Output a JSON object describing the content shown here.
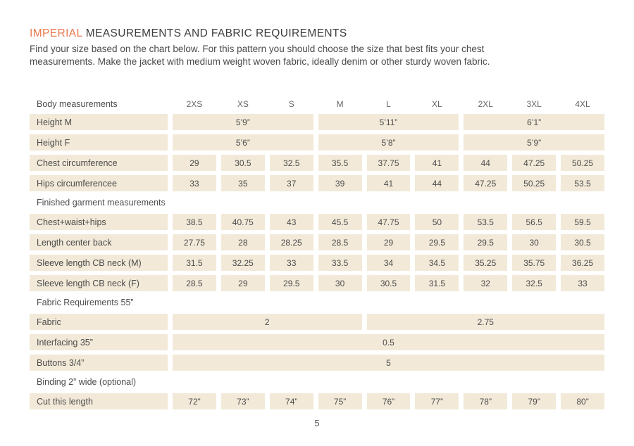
{
  "page": {
    "title_highlight": "IMPERIAL",
    "title_rest": " MEASUREMENTS AND FABRIC REQUIREMENTS",
    "intro_lines": [
      "Find your size based on the chart below. For this pattern you should choose the size that best fits your chest",
      "measurements. Make the jacket with medium weight woven fabric, ideally denim or other sturdy woven fabric."
    ],
    "page_number": "5"
  },
  "colors": {
    "accent": "#E8794D",
    "cell_background": "#F2E9D8",
    "text": "#4C4C4C",
    "muted": "#666666"
  },
  "table": {
    "corner_label": "Body measurements",
    "size_columns": [
      "2XS",
      "XS",
      "S",
      "M",
      "L",
      "XL",
      "2XL",
      "3XL",
      "4XL"
    ],
    "rows": [
      {
        "kind": "data",
        "label": "Height M",
        "cells": [
          {
            "text": "5’9”",
            "span": 3
          },
          {
            "text": "5’11”",
            "span": 3
          },
          {
            "text": "6’1”",
            "span": 3
          }
        ]
      },
      {
        "kind": "data",
        "label": "Height F",
        "cells": [
          {
            "text": "5’6”",
            "span": 3
          },
          {
            "text": "5’8”",
            "span": 3
          },
          {
            "text": "5’9”",
            "span": 3
          }
        ]
      },
      {
        "kind": "data",
        "label": "Chest circumference",
        "cells": [
          {
            "text": "29"
          },
          {
            "text": "30.5"
          },
          {
            "text": "32.5"
          },
          {
            "text": "35.5"
          },
          {
            "text": "37.75"
          },
          {
            "text": "41"
          },
          {
            "text": "44"
          },
          {
            "text": "47.25"
          },
          {
            "text": "50.25"
          }
        ]
      },
      {
        "kind": "data",
        "label": "Hips circumferencee",
        "cells": [
          {
            "text": "33"
          },
          {
            "text": "35"
          },
          {
            "text": "37"
          },
          {
            "text": "39"
          },
          {
            "text": "41"
          },
          {
            "text": "44"
          },
          {
            "text": "47.25"
          },
          {
            "text": "50.25"
          },
          {
            "text": "53.5"
          }
        ]
      },
      {
        "kind": "section",
        "label": "Finished garment measurements"
      },
      {
        "kind": "data",
        "label": "Chest+waist+hips",
        "cells": [
          {
            "text": "38.5"
          },
          {
            "text": "40.75"
          },
          {
            "text": "43"
          },
          {
            "text": "45.5"
          },
          {
            "text": "47.75"
          },
          {
            "text": "50"
          },
          {
            "text": "53.5"
          },
          {
            "text": "56.5"
          },
          {
            "text": "59.5"
          }
        ]
      },
      {
        "kind": "data",
        "label": "Length center back",
        "cells": [
          {
            "text": "27.75"
          },
          {
            "text": "28"
          },
          {
            "text": "28.25"
          },
          {
            "text": "28.5"
          },
          {
            "text": "29"
          },
          {
            "text": "29.5"
          },
          {
            "text": "29.5"
          },
          {
            "text": "30"
          },
          {
            "text": "30.5"
          }
        ]
      },
      {
        "kind": "data",
        "label": "Sleeve length CB neck (M)",
        "cells": [
          {
            "text": "31.5"
          },
          {
            "text": "32.25"
          },
          {
            "text": "33"
          },
          {
            "text": "33.5"
          },
          {
            "text": "34"
          },
          {
            "text": "34.5"
          },
          {
            "text": "35.25"
          },
          {
            "text": "35.75"
          },
          {
            "text": "36.25"
          }
        ]
      },
      {
        "kind": "data",
        "label": "Sleeve length CB neck (F)",
        "cells": [
          {
            "text": "28.5"
          },
          {
            "text": "29"
          },
          {
            "text": "29.5"
          },
          {
            "text": "30"
          },
          {
            "text": "30.5"
          },
          {
            "text": "31.5"
          },
          {
            "text": "32"
          },
          {
            "text": "32.5"
          },
          {
            "text": "33"
          }
        ]
      },
      {
        "kind": "section",
        "label": "Fabric Requirements 55”"
      },
      {
        "kind": "data",
        "label": "Fabric",
        "cells": [
          {
            "text": "2",
            "span": 4
          },
          {
            "text": "2.75",
            "span": 5
          }
        ]
      },
      {
        "kind": "data",
        "label": "Interfacing 35”",
        "cells": [
          {
            "text": "0.5",
            "span": 9
          }
        ]
      },
      {
        "kind": "data",
        "label": "Buttons 3/4”",
        "cells": [
          {
            "text": "5",
            "span": 9
          }
        ]
      },
      {
        "kind": "section",
        "label": "Binding 2” wide (optional)"
      },
      {
        "kind": "data",
        "label": "Cut this length",
        "cells": [
          {
            "text": "72”"
          },
          {
            "text": "73”"
          },
          {
            "text": "74”"
          },
          {
            "text": "75”"
          },
          {
            "text": "76”"
          },
          {
            "text": "77”"
          },
          {
            "text": "78”"
          },
          {
            "text": "79”"
          },
          {
            "text": "80”"
          }
        ]
      }
    ]
  }
}
